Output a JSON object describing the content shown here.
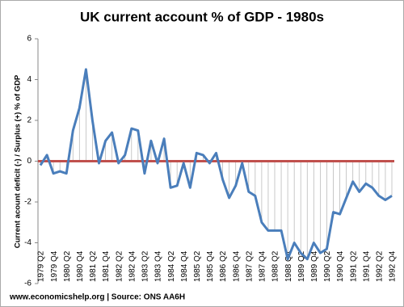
{
  "chart_data": {
    "type": "line",
    "title": "UK current account % of GDP - 1980s",
    "y_label": "Current acount  deficit (-) / Surplus (+) % of GDP",
    "source": "www.economicshelp.org | Source: ONS AA6H",
    "categories": [
      "1979 Q2",
      null,
      "1979 Q4",
      null,
      "1980 Q2",
      null,
      "1980 Q4",
      null,
      "1981 Q2",
      null,
      "1981 Q4",
      null,
      "1982 Q2",
      null,
      "1982 Q4",
      null,
      "1983 Q2",
      null,
      "1983 Q4",
      null,
      "1984 Q2",
      null,
      "1984 Q4",
      null,
      "1985 Q2",
      null,
      "1985 Q4",
      null,
      "1986 Q2",
      null,
      "1986 Q4",
      null,
      "1987 Q2",
      null,
      "1987 Q4",
      null,
      "1988 Q2",
      null,
      "1988 Q4",
      null,
      "1989 Q2",
      null,
      "1989 Q4",
      null,
      "1990 Q2",
      null,
      "1990 Q4",
      null,
      "1991 Q2",
      null,
      "1991 Q4",
      null,
      "1992 Q2",
      null,
      "1992 Q4"
    ],
    "values": [
      -0.2,
      0.3,
      -0.6,
      -0.5,
      -0.6,
      1.5,
      2.6,
      4.5,
      2.0,
      -0.1,
      1.0,
      1.4,
      -0.1,
      0.3,
      1.6,
      1.5,
      -0.6,
      1.0,
      -0.1,
      1.1,
      -1.3,
      -1.2,
      -0.1,
      -1.3,
      0.4,
      0.3,
      -0.1,
      0.4,
      -0.9,
      -1.8,
      -1.2,
      -0.1,
      -1.5,
      -1.7,
      -3.0,
      -3.4,
      -3.4,
      -3.4,
      -4.8,
      -4.0,
      -4.5,
      -4.8,
      -4.0,
      -4.5,
      -4.3,
      -2.5,
      -2.6,
      -1.8,
      -1.0,
      -1.5,
      -1.1,
      -1.3,
      -1.7,
      -1.9,
      -1.7
    ],
    "color": "#4a7ebb",
    "zero_line_color": "#c0504d",
    "ylim": [
      -6,
      6
    ],
    "yticks": [
      -6,
      -4,
      -2,
      0,
      2,
      4,
      6
    ],
    "grid": false
  }
}
